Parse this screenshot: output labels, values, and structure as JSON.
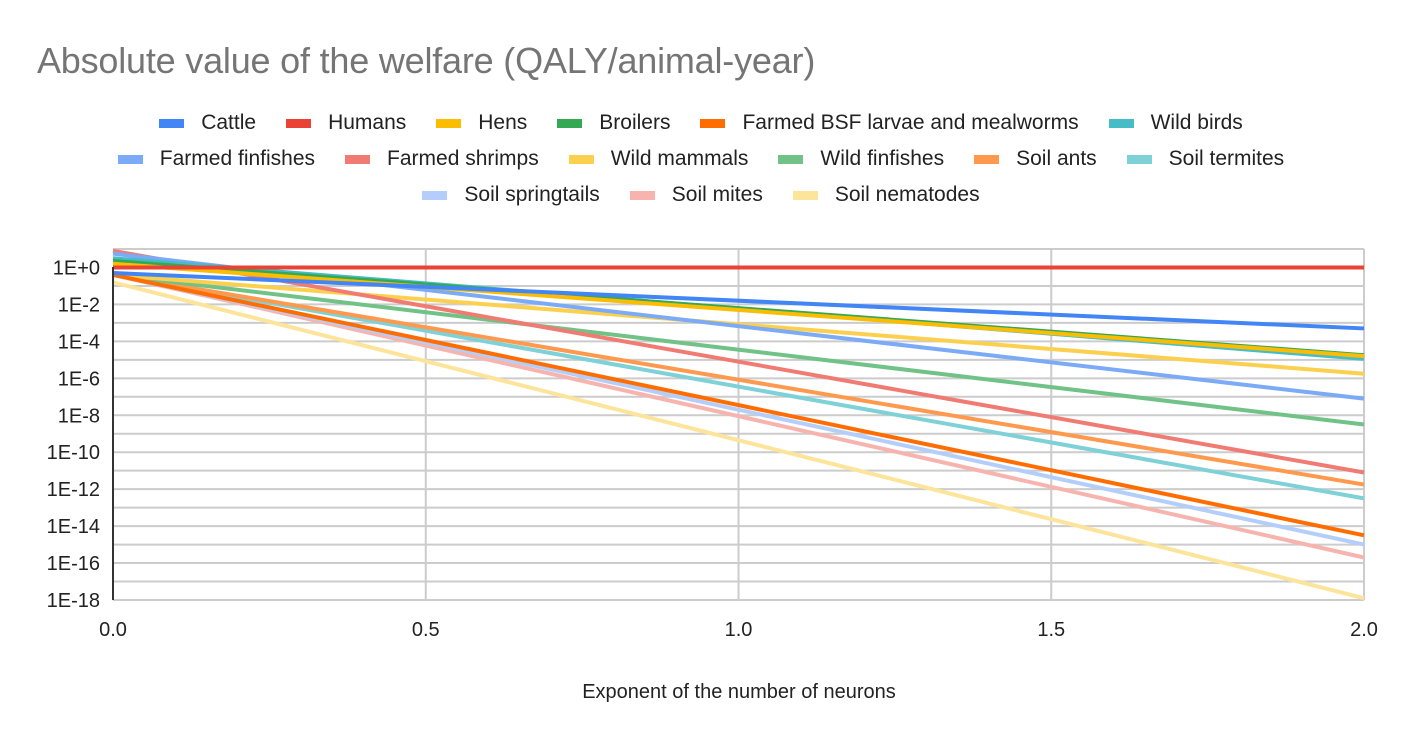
{
  "chart_data": {
    "type": "line",
    "title": "Absolute value of the welfare (QALY/animal-year)",
    "xlabel": "Exponent of the number of neurons",
    "ylabel": "",
    "xlim": [
      0,
      2
    ],
    "ylim_log10": [
      -18,
      1
    ],
    "yscale": "log",
    "grid": true,
    "legend_position": "top",
    "x_ticks": [
      "0.0",
      "0.5",
      "1.0",
      "1.5",
      "2.0"
    ],
    "y_ticks": [
      "1E+0",
      "1E-2",
      "1E-4",
      "1E-6",
      "1E-8",
      "1E-10",
      "1E-12",
      "1E-14",
      "1E-16",
      "1E-18"
    ],
    "x": [
      0,
      2
    ],
    "series": [
      {
        "name": "Cattle",
        "color": "#4285f4",
        "log10_values": [
          -0.3,
          -3.3
        ]
      },
      {
        "name": "Humans",
        "color": "#ea4335",
        "log10_values": [
          0,
          0
        ]
      },
      {
        "name": "Hens",
        "color": "#fbbc04",
        "log10_values": [
          0.2,
          -4.8
        ]
      },
      {
        "name": "Broilers",
        "color": "#34a853",
        "log10_values": [
          0.35,
          -4.75
        ]
      },
      {
        "name": "Farmed BSF larvae and mealworms",
        "color": "#ff6d01",
        "log10_values": [
          -0.4,
          -14.5
        ]
      },
      {
        "name": "Wild birds",
        "color": "#46bdc6",
        "log10_values": [
          0.5,
          -4.95
        ]
      },
      {
        "name": "Farmed finfishes",
        "color": "#7baaf7",
        "log10_values": [
          0.75,
          -7.1
        ]
      },
      {
        "name": "Farmed shrimps",
        "color": "#f07b72",
        "log10_values": [
          0.9,
          -11.1
        ]
      },
      {
        "name": "Wild mammals",
        "color": "#fcd04f",
        "log10_values": [
          -0.4,
          -5.75
        ]
      },
      {
        "name": "Wild finfishes",
        "color": "#71c287",
        "log10_values": [
          -0.4,
          -8.5
        ]
      },
      {
        "name": "Soil ants",
        "color": "#ff994d",
        "log10_values": [
          -0.4,
          -11.75
        ]
      },
      {
        "name": "Soil termites",
        "color": "#7ed1d7",
        "log10_values": [
          -0.4,
          -12.5
        ]
      },
      {
        "name": "Soil springtails",
        "color": "#b3cefb",
        "log10_values": [
          -0.4,
          -15.0
        ]
      },
      {
        "name": "Soil mites",
        "color": "#f7b4ae",
        "log10_values": [
          -0.4,
          -15.7
        ]
      },
      {
        "name": "Soil nematodes",
        "color": "#fde49b",
        "log10_values": [
          -0.8,
          -17.9
        ]
      }
    ]
  },
  "legend_rows": [
    [
      0,
      1,
      2,
      3,
      4,
      5
    ],
    [
      6,
      7,
      8,
      9,
      10,
      11
    ],
    [
      12,
      13,
      14
    ]
  ]
}
